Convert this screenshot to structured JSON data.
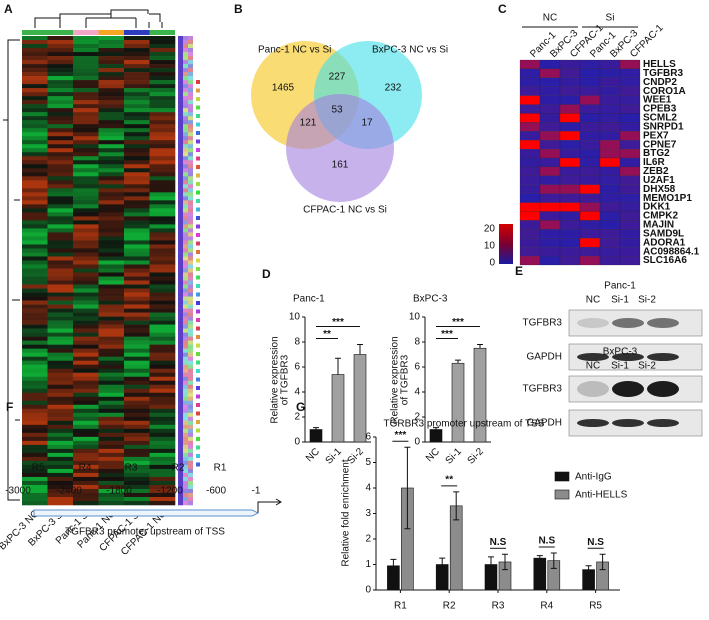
{
  "panels": {
    "A": {
      "label": "A",
      "columns": [
        "BxPC-3 NC",
        "BxPC-3 Si",
        "Panc-1 Si",
        "Panc-1 NC",
        "CFPAC-1 Si",
        "CFPAC-1 NC"
      ]
    },
    "B": {
      "label": "B",
      "sets": [
        "Panc-1 NC vs Si",
        "BxPC-3 NC vs Si",
        "CFPAC-1 NC vs Si"
      ],
      "region_counts": [
        1465,
        227,
        232,
        53,
        121,
        17,
        161
      ]
    },
    "C": {
      "label": "C",
      "groups": [
        "NC",
        "Si"
      ],
      "columns": [
        "Panc-1",
        "BxPC-3",
        "CFPAC-1",
        "Panc-1",
        "BxPC-3",
        "CFPAC-1"
      ],
      "genes": [
        "HELLS",
        "TGFBR3",
        "CNDP2",
        "CORO1A",
        "WEE1",
        "CPEB3",
        "SCML2",
        "SNRPD1",
        "PEX7",
        "CPNE7",
        "BTG2",
        "IL6R",
        "ZEB2",
        "U2AF1",
        "DHX58",
        "MEMO1P1",
        "DKK1",
        "CMPK2",
        "MAJIN",
        "SAMD9L",
        "ADORA1",
        "AC098864.1",
        "SLC16A6"
      ],
      "colorbar_ticks": [
        20,
        10,
        0
      ]
    },
    "D": {
      "label": "D",
      "charts": [
        {
          "title": "Panc-1",
          "ylabel": [
            "Relative expression",
            "of TGFBR3"
          ],
          "categories": [
            "NC",
            "Si-1",
            "Si-2"
          ],
          "values": [
            1,
            5.4,
            7
          ],
          "errors": [
            0.15,
            1.3,
            0.8
          ],
          "colors": [
            "#111111",
            "#a0a0a0",
            "#a0a0a0"
          ],
          "ylim": [
            0,
            10
          ],
          "yticks": [
            0,
            2,
            4,
            6,
            8,
            10
          ],
          "significance": [
            "**",
            "***"
          ]
        },
        {
          "title": "BxPC-3",
          "ylabel": [
            "Relative expression",
            "of TGFBR3"
          ],
          "categories": [
            "NC",
            "Si-1",
            "Si-2"
          ],
          "values": [
            1,
            6.3,
            7.5
          ],
          "errors": [
            0.15,
            0.25,
            0.3
          ],
          "colors": [
            "#111111",
            "#a0a0a0",
            "#a0a0a0"
          ],
          "ylim": [
            0,
            10
          ],
          "yticks": [
            0,
            2,
            4,
            6,
            8,
            10
          ],
          "significance": [
            "***",
            "***"
          ]
        }
      ]
    },
    "E": {
      "label": "E",
      "blots": [
        {
          "title": "Panc-1",
          "lanes": [
            "NC",
            "Si-1",
            "Si-2"
          ],
          "rows": [
            "TGFBR3",
            "GAPDH"
          ]
        },
        {
          "title": "BxPC-3",
          "lanes": [
            "NC",
            "Si-1",
            "Si-2"
          ],
          "rows": [
            "TGFBR3",
            "GAPDH"
          ]
        }
      ]
    },
    "F": {
      "label": "F",
      "regions": [
        "R5",
        "R4",
        "R3",
        "R2",
        "R1"
      ],
      "positions": [
        -3000,
        -2400,
        -1800,
        -1200,
        -600,
        -1
      ],
      "caption": "TGFBR3 promoter upstream of TSS"
    },
    "G": {
      "label": "G",
      "type": "bar",
      "title": "TGRBR3 promoter upstream of TSS",
      "ylabel": "Relative fold enrichment",
      "categories": [
        "R1",
        "R2",
        "R3",
        "R4",
        "R5"
      ],
      "series": [
        {
          "name": "Anti-IgG",
          "color": "#111111",
          "values": [
            0.95,
            1.0,
            1.0,
            1.25,
            0.8
          ],
          "errors": [
            0.25,
            0.25,
            0.3,
            0.1,
            0.15
          ]
        },
        {
          "name": "Anti-HELLS",
          "color": "#8c8c8c",
          "values": [
            4.0,
            3.3,
            1.1,
            1.15,
            1.1
          ],
          "errors": [
            1.6,
            0.55,
            0.3,
            0.3,
            0.3
          ]
        }
      ],
      "significance": [
        "***",
        "**",
        "N.S",
        "N.S",
        "N.S"
      ],
      "ylim": [
        0,
        6
      ],
      "yticks": [
        0,
        1,
        2,
        3,
        4,
        5,
        6
      ]
    }
  }
}
